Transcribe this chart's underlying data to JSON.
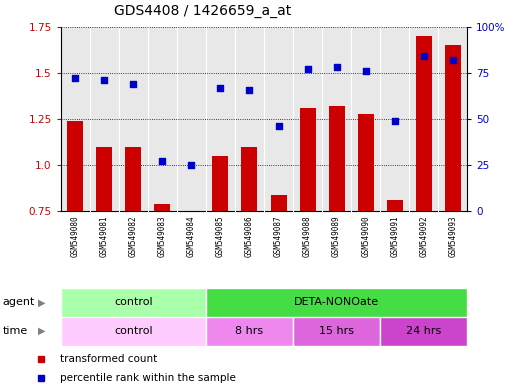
{
  "title": "GDS4408 / 1426659_a_at",
  "samples": [
    "GSM549080",
    "GSM549081",
    "GSM549082",
    "GSM549083",
    "GSM549084",
    "GSM549085",
    "GSM549086",
    "GSM549087",
    "GSM549088",
    "GSM549089",
    "GSM549090",
    "GSM549091",
    "GSM549092",
    "GSM549093"
  ],
  "transformed_count": [
    1.24,
    1.1,
    1.1,
    0.79,
    0.73,
    1.05,
    1.1,
    0.84,
    1.31,
    1.32,
    1.28,
    0.81,
    1.7,
    1.65
  ],
  "percentile_rank": [
    72,
    71,
    69,
    27,
    25,
    67,
    66,
    46,
    77,
    78,
    76,
    49,
    84,
    82
  ],
  "ylim_left": [
    0.75,
    1.75
  ],
  "ylim_right": [
    0,
    100
  ],
  "yticks_left": [
    0.75,
    1.0,
    1.25,
    1.5,
    1.75
  ],
  "yticks_right": [
    0,
    25,
    50,
    75,
    100
  ],
  "bar_color": "#cc0000",
  "dot_color": "#0000cc",
  "background_color": "#ffffff",
  "plot_bg_color": "#e8e8e8",
  "agent_groups": [
    {
      "label": "control",
      "start": 0,
      "end": 5,
      "color": "#aaffaa"
    },
    {
      "label": "DETA-NONOate",
      "start": 5,
      "end": 14,
      "color": "#44dd44"
    }
  ],
  "time_groups": [
    {
      "label": "control",
      "start": 0,
      "end": 5,
      "color": "#ffccff"
    },
    {
      "label": "8 hrs",
      "start": 5,
      "end": 8,
      "color": "#ee88ee"
    },
    {
      "label": "15 hrs",
      "start": 8,
      "end": 11,
      "color": "#dd66dd"
    },
    {
      "label": "24 hrs",
      "start": 11,
      "end": 14,
      "color": "#cc44cc"
    }
  ],
  "legend_items": [
    {
      "label": "transformed count",
      "color": "#cc0000"
    },
    {
      "label": "percentile rank within the sample",
      "color": "#0000cc"
    }
  ],
  "title_fontsize": 10,
  "tick_fontsize": 7.5,
  "label_fontsize": 8
}
